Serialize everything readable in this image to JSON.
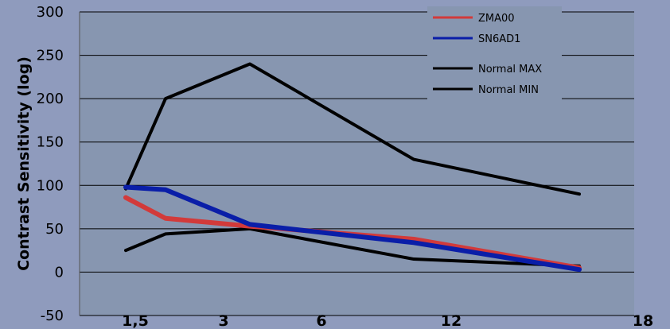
{
  "chart_data": {
    "type": "line",
    "title": "",
    "xlabel": "",
    "ylabel": "Contrast Sensitivity (log)",
    "ylim": [
      -50,
      300
    ],
    "yticks": [
      -50,
      0,
      50,
      100,
      150,
      200,
      250,
      300
    ],
    "xticks": [
      "1,5",
      "3",
      "6",
      "12",
      "18"
    ],
    "grid": "horizontal",
    "legend": "top-right",
    "plot_background": "#8796b0",
    "page_background": "#8f9bbd",
    "series": [
      {
        "name": "ZMA00",
        "color": "#d23a3a",
        "x": [
          "1,5",
          "~2",
          "~4",
          "~10",
          "~16"
        ],
        "values": [
          86,
          62,
          53,
          38,
          5
        ]
      },
      {
        "name": "SN6AD1",
        "color": "#0a1ea8",
        "x": [
          "1,5",
          "~2",
          "~4",
          "~10",
          "~16"
        ],
        "values": [
          98,
          95,
          55,
          34,
          3
        ]
      },
      {
        "name": "Normal MAX",
        "color": "#000000",
        "x": [
          "1,5",
          "~2",
          "~4",
          "~10",
          "~16"
        ],
        "values": [
          96,
          200,
          240,
          130,
          90
        ]
      },
      {
        "name": "Normal MIN",
        "color": "#000000",
        "x": [
          "1,5",
          "~2",
          "~4",
          "~10",
          "~16"
        ],
        "values": [
          25,
          44,
          50,
          15,
          7
        ]
      }
    ]
  }
}
